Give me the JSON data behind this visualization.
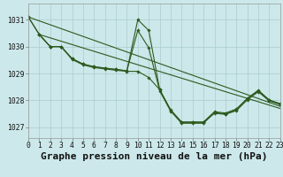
{
  "background_color": "#cce8ea",
  "grid_color": "#aacccc",
  "line_color": "#2d5a1e",
  "title": "Graphe pression niveau de la mer (hPa)",
  "ylim": [
    1026.6,
    1031.6
  ],
  "xlim": [
    0,
    23
  ],
  "yticks": [
    1027,
    1028,
    1029,
    1030,
    1031
  ],
  "xticks": [
    0,
    1,
    2,
    3,
    4,
    5,
    6,
    7,
    8,
    9,
    10,
    11,
    12,
    13,
    14,
    15,
    16,
    17,
    18,
    19,
    20,
    21,
    22,
    23
  ],
  "series1_x": [
    0,
    1,
    2,
    3,
    4,
    5,
    6,
    7,
    8,
    9,
    10,
    11,
    12,
    13,
    14,
    15,
    16,
    17,
    18,
    19,
    20,
    21,
    22,
    23
  ],
  "series1_y": [
    1031.1,
    1030.45,
    1030.0,
    1030.0,
    1029.55,
    1029.35,
    1029.25,
    1029.2,
    1029.15,
    1029.1,
    1030.6,
    1029.95,
    1028.35,
    1027.6,
    1027.15,
    1027.15,
    1027.15,
    1027.55,
    1027.5,
    1027.65,
    1028.05,
    1028.35,
    1028.0,
    1027.85
  ],
  "series2_x": [
    0,
    1,
    2,
    3,
    4,
    5,
    6,
    7,
    8,
    9,
    10,
    11,
    12,
    13,
    14,
    15,
    16,
    17,
    18,
    19,
    20,
    21,
    22,
    23
  ],
  "series2_y": [
    1031.1,
    1030.45,
    1030.0,
    1030.0,
    1029.55,
    1029.35,
    1029.25,
    1029.2,
    1029.15,
    1029.1,
    1031.0,
    1030.6,
    1028.4,
    1027.65,
    1027.2,
    1027.2,
    1027.2,
    1027.58,
    1027.53,
    1027.68,
    1028.08,
    1028.38,
    1028.02,
    1027.88
  ],
  "series3_x": [
    1,
    2,
    3,
    4,
    5,
    6,
    7,
    8,
    9,
    10,
    11,
    12,
    13,
    14,
    15,
    16,
    17,
    18,
    19,
    20,
    21,
    22,
    23
  ],
  "series3_y": [
    1030.45,
    1030.0,
    1030.0,
    1029.52,
    1029.32,
    1029.22,
    1029.17,
    1029.12,
    1029.08,
    1029.08,
    1028.85,
    1028.4,
    1027.62,
    1027.18,
    1027.18,
    1027.18,
    1027.52,
    1027.48,
    1027.62,
    1028.02,
    1028.32,
    1027.98,
    1027.85
  ],
  "trend_x": [
    0,
    23
  ],
  "trend_y": [
    1031.1,
    1027.78
  ],
  "trend2_x": [
    1,
    23
  ],
  "trend2_y": [
    1030.45,
    1027.7
  ],
  "title_fontsize": 8,
  "tick_fontsize": 5.8
}
